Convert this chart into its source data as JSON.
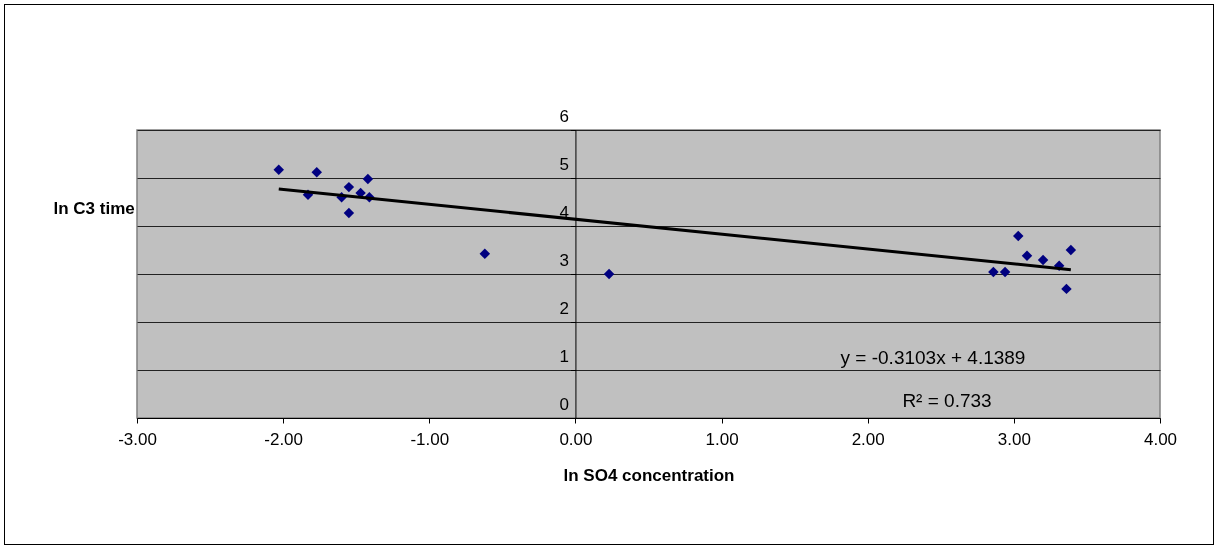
{
  "chart_data": {
    "type": "scatter",
    "xlabel": "ln SO4 concentration",
    "ylabel": "ln C3 time",
    "xlim": [
      -3,
      4
    ],
    "ylim": [
      0,
      6
    ],
    "xticks": [
      {
        "value": -3,
        "label": "-3.00"
      },
      {
        "value": -2,
        "label": "-2.00"
      },
      {
        "value": -1,
        "label": "-1.00"
      },
      {
        "value": 0,
        "label": "0.00"
      },
      {
        "value": 1,
        "label": "1.00"
      },
      {
        "value": 2,
        "label": "2.00"
      },
      {
        "value": 3,
        "label": "3.00"
      },
      {
        "value": 4,
        "label": "4.00"
      }
    ],
    "yticks": [
      0,
      1,
      2,
      3,
      4,
      5,
      6
    ],
    "grid": "y",
    "marker": "diamond",
    "series": [
      {
        "color": "#000080",
        "x": [
          -2.03,
          -1.77,
          -1.83,
          -1.55,
          -1.42,
          -1.6,
          -1.55,
          -1.47,
          -1.42,
          -1.41,
          -0.62,
          0.23,
          3.03,
          3.09,
          3.2,
          3.31,
          3.39,
          2.86,
          2.94,
          3.36
        ],
        "values": [
          5.17,
          5.12,
          4.65,
          4.81,
          4.98,
          4.6,
          4.27,
          4.69,
          null,
          4.6,
          3.42,
          3.0,
          3.79,
          3.38,
          3.29,
          3.17,
          3.5,
          3.04,
          3.04,
          2.69
        ]
      },
      {
        "type": "line",
        "color": "#000000",
        "marker": "none",
        "line_style": "solid",
        "x": [
          -2.03,
          3.39
        ],
        "values": [
          4.77,
          3.09
        ]
      }
    ],
    "annotations": [
      "y = -0.3103x + 4.1389",
      "R² = 0.733"
    ]
  }
}
